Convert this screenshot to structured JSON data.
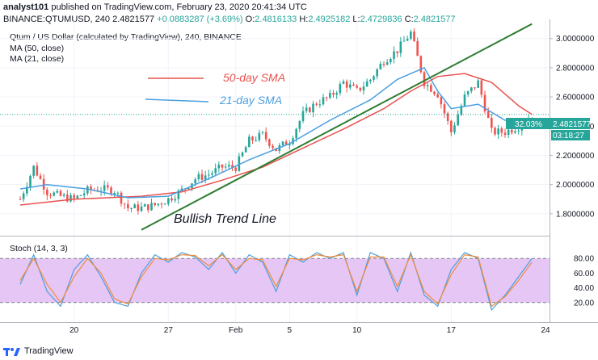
{
  "header": {
    "author": "analyst101",
    "published_text": "published on TradingView.com, February 23, 2020 20:41:34 UTC",
    "symbol": "BINANCE:QTUMUSD, 240",
    "last": "2.4821577",
    "change": "+0.0883287 (+3.69%)",
    "o_label": "O:",
    "o_val": "2.4816133",
    "h_label": "H:",
    "h_val": "2.4925182",
    "l_label": "L:",
    "l_val": "2.4729836",
    "c_label": "C:",
    "c_val": "2.4821577"
  },
  "legend": {
    "title": "Qtum / US Dollar (calculated by TradingView), 240, BINANCE",
    "ma50": "MA (50, close)",
    "ma21": "MA (21, close)"
  },
  "annotations": {
    "sma50_label": "50-day SMA",
    "sma21_label": "21-day SMA",
    "trend_label": "Bullish Trend Line"
  },
  "price_badge": {
    "pct": "32.03%",
    "price": "2.4821577",
    "countdown": "03:18:27"
  },
  "stoch": {
    "label": "Stoch (14, 3, 3)",
    "ticks": [
      "80.00",
      "60.00",
      "40.00",
      "20.00"
    ],
    "upper": 80,
    "lower": 20
  },
  "footer": {
    "brand": "TradingView"
  },
  "colors": {
    "up": "#26a69a",
    "down": "#ef5350",
    "ma50": "#e8524f",
    "ma21": "#4a9fe0",
    "trend": "#2e7d32",
    "stoch_k": "#4a9fe0",
    "stoch_d": "#f28c38",
    "stoch_band": "#e6c6f5"
  },
  "chart_data": {
    "type": "candlestick",
    "ylim": [
      1.65,
      3.12
    ],
    "y_ticks": [
      1.8,
      2.0,
      2.2,
      2.4,
      2.6,
      2.8,
      3.0
    ],
    "y_tick_labels": [
      "1.8000000",
      "2.0000000",
      "2.2000000",
      "2.4000000",
      "2.6000000",
      "2.8000000",
      "3.0000000"
    ],
    "x_tick_labels": [
      "20",
      "27",
      "Feb",
      "5",
      "10",
      "17",
      "24"
    ],
    "price_path": [
      [
        "Jan 16",
        1.9
      ],
      [
        "Jan 17",
        2.12
      ],
      [
        "Jan 18",
        1.95
      ],
      [
        "Jan 19",
        1.92
      ],
      [
        "Jan 20",
        1.9
      ],
      [
        "Jan 21",
        1.96
      ],
      [
        "Jan 22",
        1.97
      ],
      [
        "Jan 23",
        1.96
      ],
      [
        "Jan 24",
        1.84
      ],
      [
        "Jan 25",
        1.84
      ],
      [
        "Jan 26",
        1.86
      ],
      [
        "Jan 27",
        1.9
      ],
      [
        "Jan 28",
        1.96
      ],
      [
        "Jan 29",
        2.04
      ],
      [
        "Jan 30",
        2.07
      ],
      [
        "Jan 31",
        2.12
      ],
      [
        "Feb 1",
        2.12
      ],
      [
        "Feb 2",
        2.3
      ],
      [
        "Feb 3",
        2.34
      ],
      [
        "Feb 4",
        2.24
      ],
      [
        "Feb 5",
        2.3
      ],
      [
        "Feb 6",
        2.48
      ],
      [
        "Feb 7",
        2.56
      ],
      [
        "Feb 8",
        2.6
      ],
      [
        "Feb 9",
        2.7
      ],
      [
        "Feb 10",
        2.64
      ],
      [
        "Feb 11",
        2.72
      ],
      [
        "Feb 12",
        2.85
      ],
      [
        "Feb 13",
        2.92
      ],
      [
        "Feb 14",
        3.04
      ],
      [
        "Feb 15",
        2.7
      ],
      [
        "Feb 16",
        2.62
      ],
      [
        "Feb 17",
        2.36
      ],
      [
        "Feb 18",
        2.6
      ],
      [
        "Feb 19",
        2.7
      ],
      [
        "Feb 20",
        2.36
      ],
      [
        "Feb 21",
        2.36
      ],
      [
        "Feb 22",
        2.4
      ],
      [
        "Feb 23",
        2.48
      ]
    ],
    "sma50": [
      [
        "Jan 16",
        1.86
      ],
      [
        "Jan 20",
        1.9
      ],
      [
        "Jan 25",
        1.92
      ],
      [
        "Jan 28",
        1.95
      ],
      [
        "Jan 31",
        2.03
      ],
      [
        "Feb 3",
        2.12
      ],
      [
        "Feb 6",
        2.25
      ],
      [
        "Feb 9",
        2.38
      ],
      [
        "Feb 12",
        2.52
      ],
      [
        "Feb 14",
        2.64
      ],
      [
        "Feb 16",
        2.74
      ],
      [
        "Feb 18",
        2.76
      ],
      [
        "Feb 20",
        2.7
      ],
      [
        "Feb 22",
        2.54
      ],
      [
        "Feb 23",
        2.48
      ]
    ],
    "sma21": [
      [
        "Jan 16",
        1.97
      ],
      [
        "Jan 18",
        2.0
      ],
      [
        "Jan 21",
        1.97
      ],
      [
        "Jan 24",
        1.91
      ],
      [
        "Jan 27",
        1.92
      ],
      [
        "Jan 30",
        2.04
      ],
      [
        "Feb 2",
        2.17
      ],
      [
        "Feb 5",
        2.28
      ],
      [
        "Feb 8",
        2.44
      ],
      [
        "Feb 11",
        2.58
      ],
      [
        "Feb 13",
        2.72
      ],
      [
        "Feb 15",
        2.8
      ],
      [
        "Feb 16",
        2.64
      ],
      [
        "Feb 17",
        2.52
      ],
      [
        "Feb 19",
        2.55
      ],
      [
        "Feb 21",
        2.44
      ],
      [
        "Feb 23",
        2.42
      ]
    ],
    "trend_line": [
      [
        "Jan 25",
        1.69
      ],
      [
        "Feb 23",
        3.1
      ]
    ],
    "last_price": 2.48,
    "stoch_k": [
      [
        "Jan 16",
        45
      ],
      [
        "Jan 17",
        85
      ],
      [
        "Jan 18",
        35
      ],
      [
        "Jan 19",
        15
      ],
      [
        "Jan 20",
        65
      ],
      [
        "Jan 21",
        85
      ],
      [
        "Jan 22",
        55
      ],
      [
        "Jan 23",
        20
      ],
      [
        "Jan 24",
        15
      ],
      [
        "Jan 25",
        60
      ],
      [
        "Jan 26",
        85
      ],
      [
        "Jan 27",
        75
      ],
      [
        "Jan 28",
        88
      ],
      [
        "Jan 29",
        82
      ],
      [
        "Jan 30",
        65
      ],
      [
        "Jan 31",
        88
      ],
      [
        "Feb 1",
        60
      ],
      [
        "Feb 2",
        85
      ],
      [
        "Feb 3",
        75
      ],
      [
        "Feb 4",
        35
      ],
      [
        "Feb 5",
        85
      ],
      [
        "Feb 6",
        75
      ],
      [
        "Feb 7",
        88
      ],
      [
        "Feb 8",
        80
      ],
      [
        "Feb 9",
        88
      ],
      [
        "Feb 10",
        30
      ],
      [
        "Feb 11",
        88
      ],
      [
        "Feb 12",
        80
      ],
      [
        "Feb 13",
        35
      ],
      [
        "Feb 14",
        88
      ],
      [
        "Feb 15",
        30
      ],
      [
        "Feb 16",
        15
      ],
      [
        "Feb 17",
        65
      ],
      [
        "Feb 18",
        88
      ],
      [
        "Feb 19",
        80
      ],
      [
        "Feb 20",
        10
      ],
      [
        "Feb 21",
        30
      ],
      [
        "Feb 22",
        55
      ],
      [
        "Feb 23",
        80
      ]
    ],
    "stoch_d": [
      [
        "Jan 16",
        50
      ],
      [
        "Jan 17",
        80
      ],
      [
        "Jan 18",
        45
      ],
      [
        "Jan 19",
        20
      ],
      [
        "Jan 20",
        55
      ],
      [
        "Jan 21",
        80
      ],
      [
        "Jan 22",
        60
      ],
      [
        "Jan 23",
        25
      ],
      [
        "Jan 24",
        18
      ],
      [
        "Jan 25",
        55
      ],
      [
        "Jan 26",
        80
      ],
      [
        "Jan 27",
        78
      ],
      [
        "Jan 28",
        85
      ],
      [
        "Jan 29",
        84
      ],
      [
        "Jan 30",
        70
      ],
      [
        "Jan 31",
        85
      ],
      [
        "Feb 1",
        65
      ],
      [
        "Feb 2",
        80
      ],
      [
        "Feb 3",
        78
      ],
      [
        "Feb 4",
        42
      ],
      [
        "Feb 5",
        80
      ],
      [
        "Feb 6",
        78
      ],
      [
        "Feb 7",
        85
      ],
      [
        "Feb 8",
        82
      ],
      [
        "Feb 9",
        85
      ],
      [
        "Feb 10",
        35
      ],
      [
        "Feb 11",
        82
      ],
      [
        "Feb 12",
        82
      ],
      [
        "Feb 13",
        42
      ],
      [
        "Feb 14",
        85
      ],
      [
        "Feb 15",
        35
      ],
      [
        "Feb 16",
        18
      ],
      [
        "Feb 17",
        58
      ],
      [
        "Feb 18",
        85
      ],
      [
        "Feb 19",
        82
      ],
      [
        "Feb 20",
        15
      ],
      [
        "Feb 21",
        28
      ],
      [
        "Feb 22",
        50
      ],
      [
        "Feb 23",
        75
      ]
    ]
  }
}
